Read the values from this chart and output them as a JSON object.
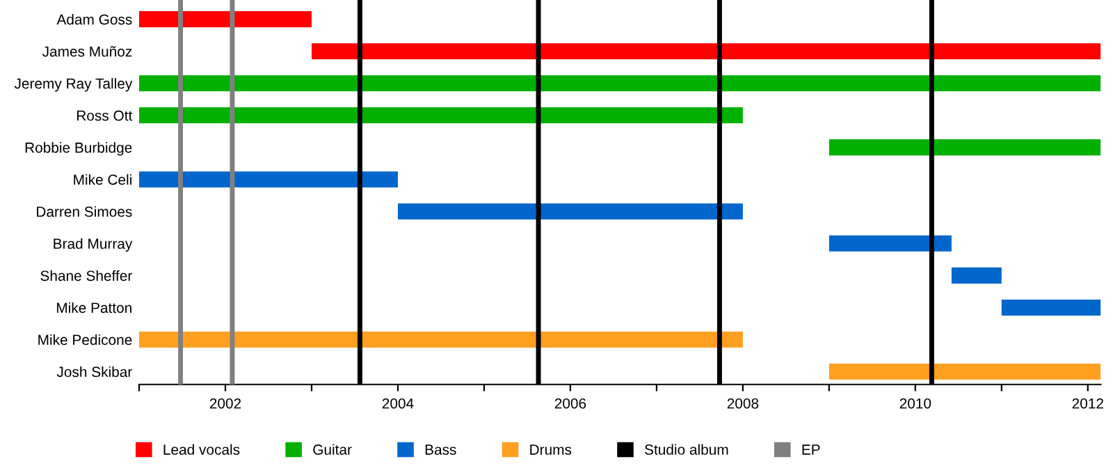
{
  "chart_data": {
    "type": "bar",
    "orientation": "horizontal",
    "legend": "bottom",
    "grid": false,
    "categories": [
      "Adam Goss",
      "James Muñoz",
      "Jeremy Ray Talley",
      "Ross Ott",
      "Robbie Burbidge",
      "Mike Celi",
      "Darren Simoes",
      "Brad Murray",
      "Shane Sheffer",
      "Mike Patton",
      "Mike Pedicone",
      "Josh Skibar"
    ],
    "series": [
      {
        "name": "Lead vocals",
        "color": "#ff0000",
        "base": [
          2001,
          2003,
          null,
          null,
          null,
          null,
          null,
          null,
          null,
          null,
          null,
          null
        ],
        "values": [
          2,
          9.15,
          null,
          null,
          null,
          null,
          null,
          null,
          null,
          null,
          null,
          null
        ]
      },
      {
        "name": "Guitar",
        "color": "#00b000",
        "base": [
          null,
          null,
          2001,
          2001,
          2009,
          null,
          null,
          null,
          null,
          null,
          null,
          null
        ],
        "values": [
          null,
          null,
          11.15,
          7,
          3.15,
          null,
          null,
          null,
          null,
          null,
          null,
          null
        ]
      },
      {
        "name": "Bass",
        "color": "#0066cc",
        "base": [
          null,
          null,
          null,
          null,
          null,
          2001,
          2004,
          2009,
          2010.42,
          2011,
          null,
          null
        ],
        "values": [
          null,
          null,
          null,
          null,
          null,
          3,
          4,
          1.42,
          0.58,
          1.15,
          null,
          null
        ]
      },
      {
        "name": "Drums",
        "color": "#ff9f20",
        "base": [
          null,
          null,
          null,
          null,
          null,
          null,
          null,
          null,
          null,
          null,
          2001,
          2009
        ],
        "values": [
          null,
          null,
          null,
          null,
          null,
          null,
          null,
          null,
          null,
          null,
          7,
          3.15
        ]
      }
    ],
    "ref_lines": [
      {
        "axis": "x",
        "value": 2003.56,
        "label": "Studio album",
        "color": "#000000"
      },
      {
        "axis": "x",
        "value": 2005.63,
        "color": "#000000"
      },
      {
        "axis": "x",
        "value": 2007.73,
        "color": "#000000"
      },
      {
        "axis": "x",
        "value": 2010.19,
        "color": "#000000"
      },
      {
        "axis": "x",
        "value": 2001.48,
        "label": "EP",
        "color": "#808080"
      },
      {
        "axis": "x",
        "value": 2002.08,
        "color": "#808080"
      }
    ],
    "xlim": [
      2001,
      2012.15
    ],
    "xticks": [
      {
        "value": 2001,
        "label": null
      },
      2002,
      {
        "value": 2003,
        "label": null
      },
      2004,
      {
        "value": 2005,
        "label": null
      },
      2006,
      {
        "value": 2007,
        "label": null
      },
      2008,
      {
        "value": 2009,
        "label": null
      },
      2010,
      {
        "value": 2011,
        "label": null
      },
      2012
    ]
  }
}
